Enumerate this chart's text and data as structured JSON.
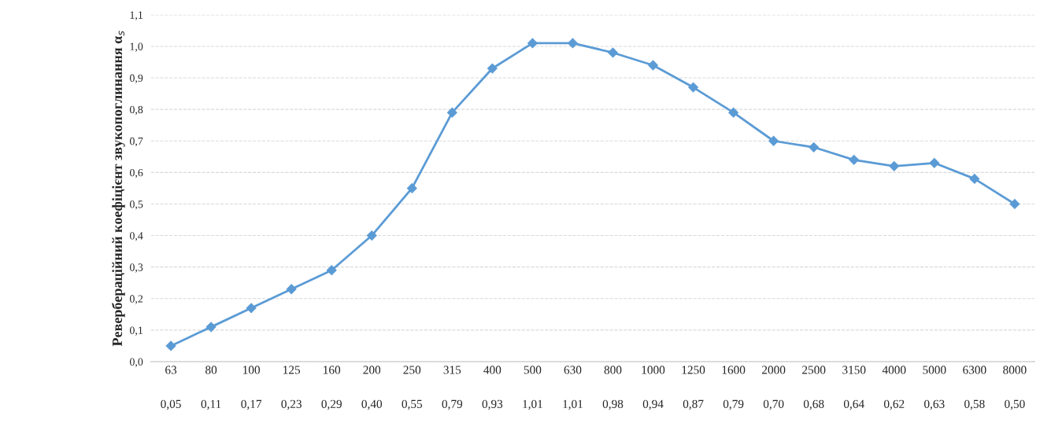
{
  "chart_data": {
    "type": "line",
    "ylabel": "Реверберaційний коефіцієнт звукопоглинання α$_{s}$",
    "categories": [
      "63",
      "80",
      "100",
      "125",
      "160",
      "200",
      "250",
      "315",
      "400",
      "500",
      "630",
      "800",
      "1000",
      "1250",
      "1600",
      "2000",
      "2500",
      "3150",
      "4000",
      "5000",
      "6300",
      "8000"
    ],
    "series": [
      {
        "color": "#5b9bd5",
        "values": [
          0.05,
          0.11,
          0.17,
          0.23,
          0.29,
          0.4,
          0.55,
          0.79,
          0.93,
          1.01,
          1.01,
          0.98,
          0.94,
          0.87,
          0.79,
          0.7,
          0.68,
          0.64,
          0.62,
          0.63,
          0.58,
          0.5
        ],
        "value_labels": [
          "0,05",
          "0,11",
          "0,17",
          "0,23",
          "0,29",
          "0,40",
          "0,55",
          "0,79",
          "0,93",
          "1,01",
          "1,01",
          "0,98",
          "0,94",
          "0,87",
          "0,79",
          "0,70",
          "0,68",
          "0,64",
          "0,62",
          "0,63",
          "0,58",
          "0,50"
        ]
      }
    ],
    "ylim": [
      0,
      1.1
    ],
    "yticks": [
      {
        "value": 0,
        "label": "0,0"
      },
      {
        "value": 0.1,
        "label": "0,1"
      },
      {
        "value": 0.2,
        "label": "0,2"
      },
      {
        "value": 0.3,
        "label": "0,3"
      },
      {
        "value": 0.4,
        "label": "0,4"
      },
      {
        "value": 0.5,
        "label": "0,5"
      },
      {
        "value": 0.6,
        "label": "0,6"
      },
      {
        "value": 0.7,
        "label": "0,7"
      },
      {
        "value": 0.8,
        "label": "0,8"
      },
      {
        "value": 0.9,
        "label": "0,9"
      },
      {
        "value": 1.0,
        "label": "1,0"
      },
      {
        "value": 1.1,
        "label": "1,1"
      }
    ],
    "grid": "y",
    "marker": "diamond",
    "line_style": "solid",
    "legend": false
  }
}
